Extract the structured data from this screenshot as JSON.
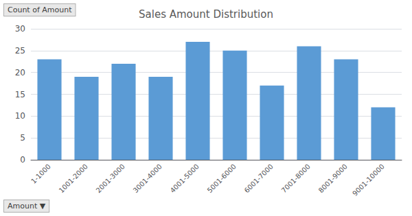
{
  "chart_data": {
    "type": "bar",
    "title": "Sales Amount Distribution",
    "categories": [
      "1-1000",
      "1001-2000",
      "2001-3000",
      "3001-4000",
      "4001-5000",
      "5001-6000",
      "6001-7000",
      "7001-8000",
      "8001-9000",
      "9001-10000"
    ],
    "values": [
      23,
      19,
      22,
      19,
      27,
      25,
      17,
      26,
      23,
      12
    ],
    "color": "#5B9BD5",
    "ylim": [
      0,
      30
    ],
    "yticks": [
      0,
      5,
      10,
      15,
      20,
      25,
      30
    ],
    "grid": true,
    "ylabel": "Count of Amount",
    "xlabel": "Amount ▼"
  }
}
